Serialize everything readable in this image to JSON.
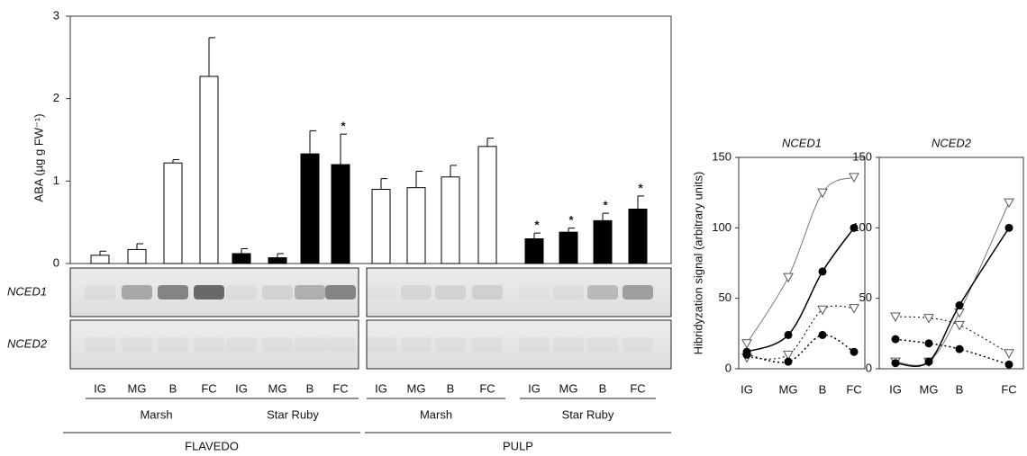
{
  "chart_data": [
    {
      "type": "bar",
      "y_label": "ABA (µg g FW⁻¹)",
      "ylim": [
        0,
        3
      ],
      "yticks": [
        0,
        1,
        2,
        3
      ],
      "categories": [
        "IG",
        "MG",
        "B",
        "FC"
      ],
      "cultivars": [
        "Marsh",
        "Star Ruby"
      ],
      "tissues": [
        "FLAVEDO",
        "PULP"
      ],
      "blot_rows": [
        "NCED1",
        "NCED2"
      ],
      "star": "*",
      "series": [
        {
          "color": "#ffffff",
          "values": [
            0.1,
            0.17,
            1.22,
            2.27
          ],
          "errors": [
            0.05,
            0.07,
            0.04,
            0.47
          ],
          "starred": [
            false,
            false,
            false,
            false
          ]
        },
        {
          "color": "#000000",
          "values": [
            0.12,
            0.07,
            1.33,
            1.2
          ],
          "errors": [
            0.06,
            0.05,
            0.28,
            0.37
          ],
          "starred": [
            false,
            false,
            false,
            true
          ]
        },
        {
          "color": "#ffffff",
          "values": [
            0.9,
            0.92,
            1.05,
            1.42
          ],
          "errors": [
            0.13,
            0.2,
            0.14,
            0.1
          ],
          "starred": [
            false,
            false,
            false,
            false
          ]
        },
        {
          "color": "#000000",
          "values": [
            0.3,
            0.38,
            0.52,
            0.66
          ],
          "errors": [
            0.07,
            0.05,
            0.09,
            0.16
          ],
          "starred": [
            true,
            true,
            true,
            true
          ]
        }
      ]
    },
    {
      "type": "line",
      "title": "NCED1",
      "y_label": "Hibridyzation signal (arbitrary units)",
      "categories": [
        "IG",
        "MG",
        "B",
        "FC"
      ],
      "ylim": [
        0,
        150
      ],
      "yticks": [
        0,
        50,
        100,
        150
      ],
      "series": [
        {
          "color": "#777777",
          "marker": "triangle-open",
          "dashed": false,
          "values": [
            18,
            65,
            125,
            136
          ]
        },
        {
          "color": "#000000",
          "marker": "circle-filled",
          "dashed": false,
          "values": [
            12,
            24,
            69,
            100
          ]
        },
        {
          "color": "#777777",
          "marker": "triangle-open",
          "dashed": true,
          "values": [
            8,
            10,
            42,
            43
          ]
        },
        {
          "color": "#000000",
          "marker": "circle-filled",
          "dashed": true,
          "values": [
            10,
            5,
            24,
            12
          ]
        }
      ]
    },
    {
      "type": "line",
      "title": "NCED2",
      "categories": [
        "IG",
        "MG",
        "B",
        "FC"
      ],
      "ylim": [
        0,
        150
      ],
      "yticks": [
        0,
        50,
        100,
        150
      ],
      "series": [
        {
          "color": "#777777",
          "marker": "triangle-open",
          "dashed": false,
          "values": [
            5,
            5,
            40,
            118
          ]
        },
        {
          "color": "#000000",
          "marker": "circle-filled",
          "dashed": false,
          "values": [
            4,
            5,
            45,
            100
          ]
        },
        {
          "color": "#777777",
          "marker": "triangle-open",
          "dashed": true,
          "values": [
            37,
            36,
            31,
            11
          ]
        },
        {
          "color": "#000000",
          "marker": "circle-filled",
          "dashed": true,
          "values": [
            21,
            18,
            14,
            3
          ]
        }
      ]
    }
  ]
}
